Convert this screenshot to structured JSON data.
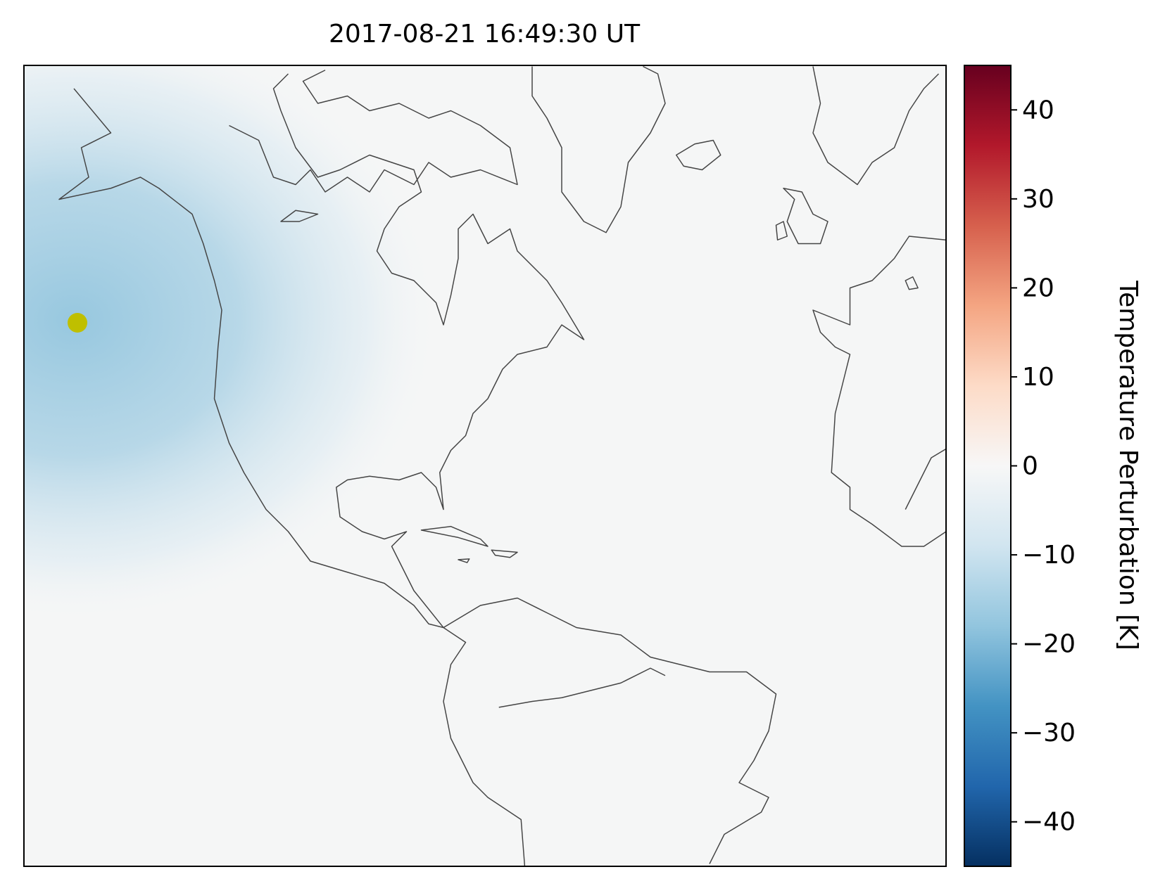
{
  "title": "2017-08-21 16:49:30 UT",
  "colorbar": {
    "label": "Temperature Perturbation [K]",
    "lim": [
      -45,
      45
    ],
    "ticks": [
      {
        "value": -40,
        "label": "−40"
      },
      {
        "value": -30,
        "label": "−30"
      },
      {
        "value": -20,
        "label": "−20"
      },
      {
        "value": -10,
        "label": "−10"
      },
      0,
      10,
      20,
      30,
      40
    ],
    "colors": [
      "#053061",
      "#2166ac",
      "#4393c3",
      "#92c5de",
      "#d1e5f0",
      "#f7f7f7",
      "#fddbc7",
      "#f4a582",
      "#d6604d",
      "#b2182b",
      "#67001f"
    ]
  }
}
